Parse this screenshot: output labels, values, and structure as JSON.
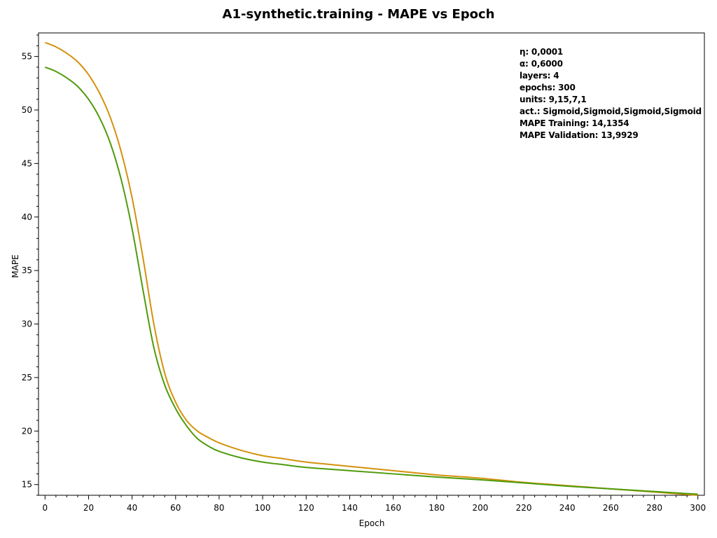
{
  "chart_data": {
    "type": "line",
    "title": "A1-synthetic.training - MAPE vs Epoch",
    "xlabel": "Epoch",
    "ylabel": "MAPE",
    "xlim": [
      -3,
      303
    ],
    "ylim": [
      14,
      57.2
    ],
    "xticks": [
      0,
      20,
      40,
      60,
      80,
      100,
      120,
      140,
      160,
      180,
      200,
      220,
      240,
      260,
      280,
      300
    ],
    "yticks": [
      15,
      20,
      25,
      30,
      35,
      40,
      45,
      50,
      55
    ],
    "grid": false,
    "series": [
      {
        "color": "#d4910c",
        "x": [
          0,
          5,
          10,
          15,
          20,
          25,
          30,
          35,
          40,
          45,
          50,
          55,
          60,
          65,
          70,
          75,
          80,
          90,
          100,
          110,
          120,
          140,
          160,
          180,
          200,
          220,
          240,
          260,
          280,
          300
        ],
        "values": [
          56.3,
          55.9,
          55.3,
          54.5,
          53.3,
          51.6,
          49.3,
          46.1,
          41.8,
          36.2,
          30.0,
          25.4,
          22.7,
          21.0,
          20.0,
          19.4,
          18.9,
          18.2,
          17.7,
          17.4,
          17.1,
          16.7,
          16.3,
          15.9,
          15.6,
          15.2,
          14.9,
          14.6,
          14.3,
          14.0
        ]
      },
      {
        "color": "#4f9b0c",
        "x": [
          0,
          5,
          10,
          15,
          20,
          25,
          30,
          35,
          40,
          45,
          50,
          55,
          60,
          65,
          70,
          75,
          80,
          90,
          100,
          110,
          120,
          140,
          160,
          180,
          200,
          220,
          240,
          260,
          280,
          300
        ],
        "values": [
          54.0,
          53.6,
          53.0,
          52.2,
          51.0,
          49.3,
          46.9,
          43.5,
          38.9,
          33.2,
          27.8,
          24.3,
          22.1,
          20.5,
          19.3,
          18.6,
          18.1,
          17.5,
          17.1,
          16.85,
          16.6,
          16.3,
          16.0,
          15.7,
          15.45,
          15.15,
          14.85,
          14.6,
          14.35,
          14.1
        ]
      }
    ]
  },
  "annotation": {
    "lines": [
      "η: 0,0001",
      "α: 0,6000",
      "layers: 4",
      "epochs: 300",
      "units: 9,15,7,1",
      "act.: Sigmoid,Sigmoid,Sigmoid,Sigmoid",
      "MAPE Training: 14,1354",
      "MAPE Validation: 13,9929"
    ]
  }
}
